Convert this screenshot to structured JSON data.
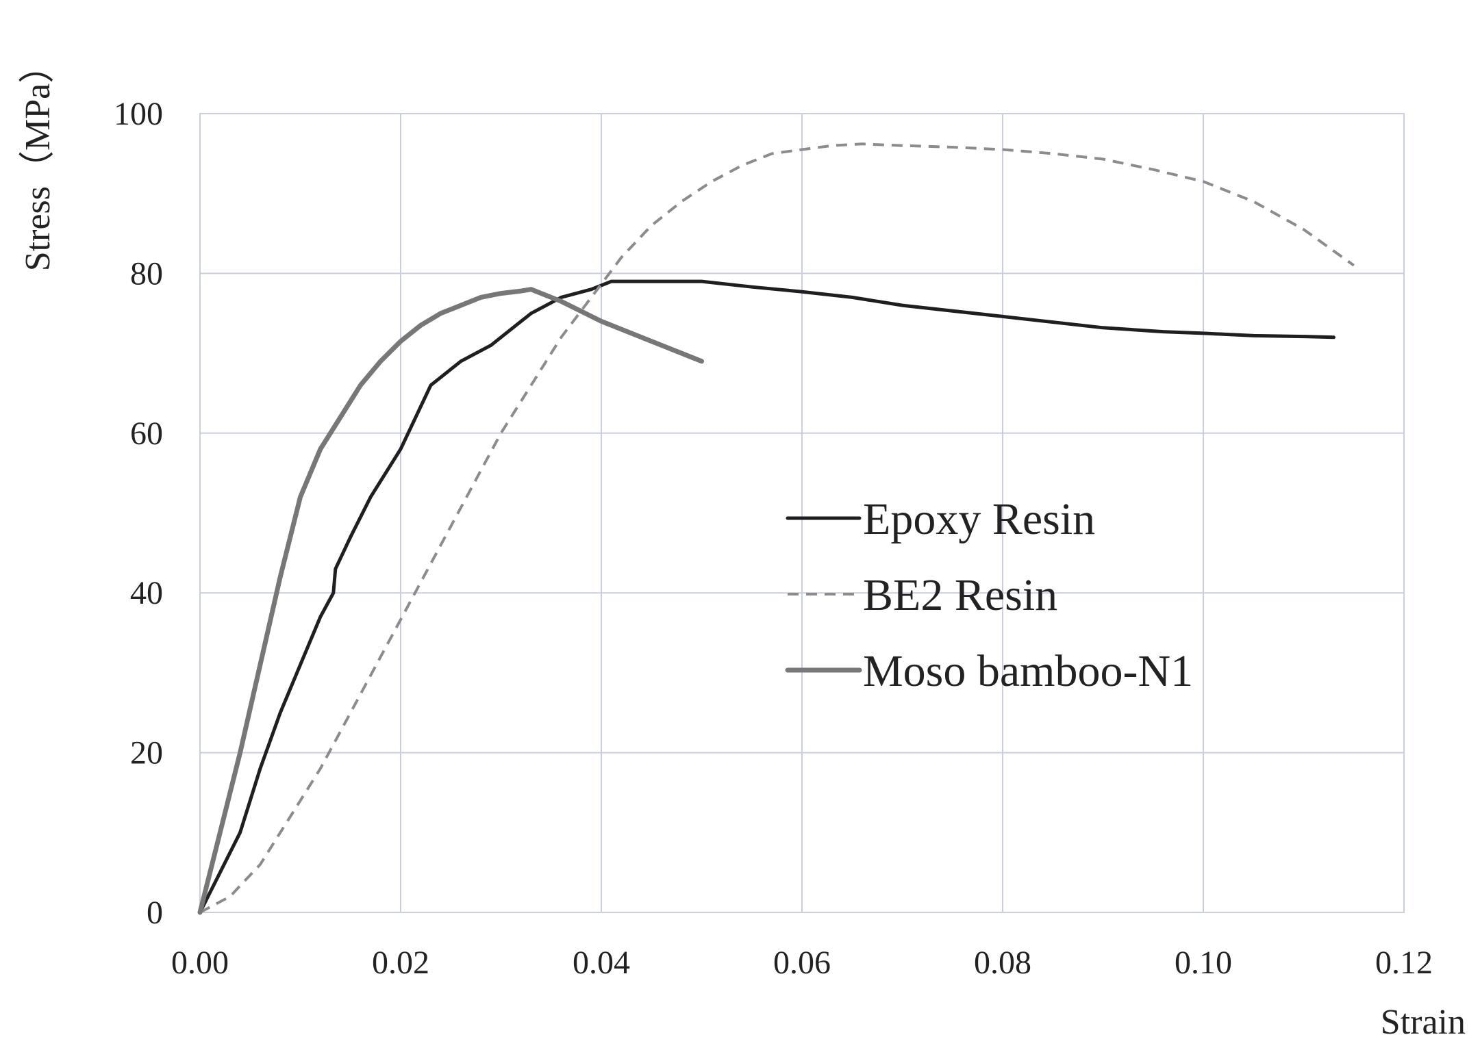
{
  "chart_data": {
    "type": "line",
    "xlabel": "Strain",
    "ylabel": "Stress（MPa）",
    "xlim": [
      0,
      0.12
    ],
    "ylim": [
      0,
      100
    ],
    "xticks": [
      "0.00",
      "0.02",
      "0.04",
      "0.06",
      "0.08",
      "0.10",
      "0.12"
    ],
    "yticks": [
      "0",
      "20",
      "40",
      "60",
      "80",
      "100"
    ],
    "grid": true,
    "legend_position": "center-right",
    "series": [
      {
        "name": "Epoxy Resin",
        "color": "#1f1f1f",
        "style": "solid",
        "x": [
          0.0,
          0.002,
          0.004,
          0.006,
          0.008,
          0.01,
          0.012,
          0.0133,
          0.0135,
          0.015,
          0.017,
          0.02,
          0.023,
          0.026,
          0.029,
          0.031,
          0.033,
          0.036,
          0.039,
          0.041,
          0.045,
          0.05,
          0.055,
          0.06,
          0.065,
          0.07,
          0.08,
          0.09,
          0.096,
          0.1,
          0.105,
          0.11,
          0.113
        ],
        "y": [
          0,
          5,
          10,
          18,
          25,
          31,
          37,
          40,
          43,
          47,
          52,
          58,
          66,
          69,
          71,
          73,
          75,
          77,
          78,
          79,
          79,
          79,
          78.3,
          77.7,
          77,
          76,
          74.6,
          73.2,
          72.7,
          72.5,
          72.2,
          72.1,
          72
        ]
      },
      {
        "name": "BE2 Resin",
        "color": "#8c8c8c",
        "style": "dashed",
        "x": [
          0.0,
          0.003,
          0.006,
          0.009,
          0.012,
          0.015,
          0.018,
          0.021,
          0.024,
          0.027,
          0.03,
          0.033,
          0.036,
          0.039,
          0.042,
          0.045,
          0.048,
          0.051,
          0.054,
          0.057,
          0.06,
          0.063,
          0.066,
          0.07,
          0.075,
          0.08,
          0.085,
          0.09,
          0.095,
          0.1,
          0.105,
          0.11,
          0.115
        ],
        "y": [
          0,
          2,
          6,
          12,
          18,
          25,
          32,
          39,
          46,
          53,
          60,
          66,
          72,
          77,
          82,
          86,
          89,
          91.5,
          93.5,
          95,
          95.5,
          96,
          96.2,
          96,
          95.8,
          95.5,
          95,
          94.3,
          93,
          91.5,
          89,
          85.5,
          81
        ]
      },
      {
        "name": "Moso bamboo-N1",
        "color": "#777777",
        "style": "solid-thick",
        "x": [
          0.0,
          0.002,
          0.004,
          0.006,
          0.008,
          0.01,
          0.012,
          0.014,
          0.016,
          0.018,
          0.02,
          0.022,
          0.024,
          0.026,
          0.028,
          0.03,
          0.032,
          0.033,
          0.036,
          0.04,
          0.045,
          0.05
        ],
        "y": [
          0,
          10,
          20,
          31,
          42,
          52,
          58,
          62,
          66,
          69,
          71.5,
          73.5,
          75,
          76,
          77,
          77.5,
          77.8,
          78,
          76.5,
          74,
          71.5,
          69
        ]
      }
    ]
  }
}
